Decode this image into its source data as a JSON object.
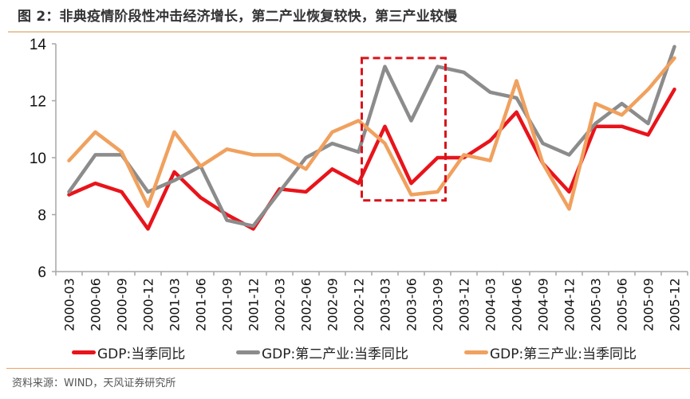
{
  "header": {
    "title": "图 2：非典疫情阶段性冲击经济增长，第二产业恢复较快，第三产业较慢"
  },
  "footer": {
    "source": "资料来源：WIND，天风证券研究所"
  },
  "colors": {
    "gdp": "#e8141b",
    "secondary": "#8c8c8c",
    "tertiary": "#f0a15f",
    "highlight_box": "#d9141b",
    "axis": "#a6a6a6"
  },
  "chart_data": {
    "type": "line",
    "title": "非典疫情阶段性冲击经济增长，第二产业恢复较快，第三产业较慢",
    "xlabel": "",
    "ylabel": "",
    "ylim": [
      6,
      14
    ],
    "yticks": [
      6,
      8,
      10,
      12,
      14
    ],
    "grid": false,
    "legend_position": "bottom",
    "categories": [
      "2000-03",
      "2000-06",
      "2000-09",
      "2000-12",
      "2001-03",
      "2001-06",
      "2001-09",
      "2001-12",
      "2002-03",
      "2002-06",
      "2002-09",
      "2002-12",
      "2003-03",
      "2003-06",
      "2003-09",
      "2003-12",
      "2004-03",
      "2004-06",
      "2004-09",
      "2004-12",
      "2005-03",
      "2005-06",
      "2005-09",
      "2005-12"
    ],
    "series": [
      {
        "name": "GDP:当季同比",
        "color_key": "gdp",
        "values": [
          8.7,
          9.1,
          8.8,
          7.5,
          9.5,
          8.6,
          8.0,
          7.5,
          8.9,
          8.8,
          9.6,
          9.1,
          11.1,
          9.1,
          10.0,
          10.0,
          10.6,
          11.6,
          9.8,
          8.8,
          11.1,
          11.1,
          10.8,
          12.4
        ]
      },
      {
        "name": "GDP:第二产业:当季同比",
        "color_key": "secondary",
        "values": [
          8.8,
          10.1,
          10.1,
          8.8,
          9.2,
          9.7,
          7.8,
          7.6,
          8.8,
          10.0,
          10.5,
          10.2,
          13.2,
          11.3,
          13.2,
          13.0,
          12.3,
          12.1,
          10.5,
          10.1,
          11.2,
          11.9,
          11.2,
          13.9
        ]
      },
      {
        "name": "GDP:第三产业:当季同比",
        "color_key": "tertiary",
        "values": [
          9.9,
          10.9,
          10.2,
          8.3,
          10.9,
          9.7,
          10.3,
          10.1,
          10.1,
          9.6,
          10.9,
          11.3,
          10.5,
          8.7,
          8.8,
          10.1,
          9.9,
          12.7,
          9.8,
          8.2,
          11.9,
          11.5,
          12.4,
          13.5
        ]
      }
    ],
    "annotations": [
      {
        "type": "dashed-box",
        "x_from": "2002-12",
        "x_to": "2003-09",
        "y_from": 8.5,
        "y_to": 13.5,
        "note": "SARS period highlight"
      }
    ]
  }
}
